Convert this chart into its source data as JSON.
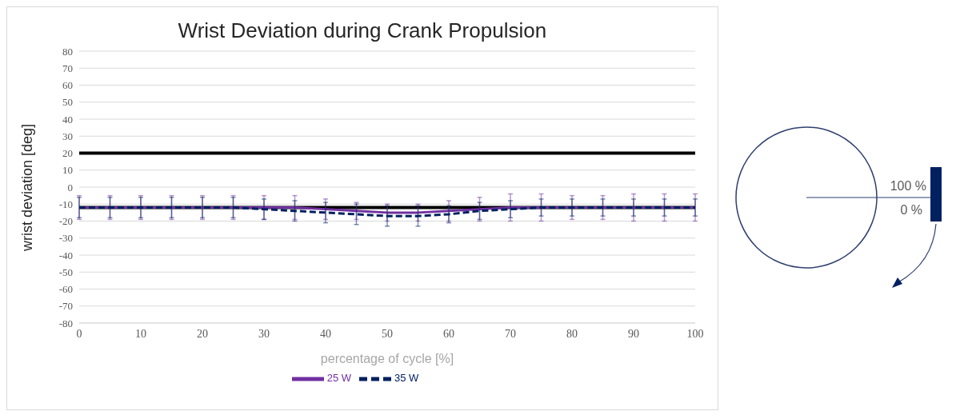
{
  "chart_data": {
    "type": "line",
    "title": "Wrist Deviation during Crank Propulsion",
    "xlabel": "percentage of cycle [%]",
    "ylabel": "wrist deviation [deg]",
    "x": [
      0,
      5,
      10,
      15,
      20,
      25,
      30,
      35,
      40,
      45,
      50,
      55,
      60,
      65,
      70,
      75,
      80,
      85,
      90,
      95,
      100
    ],
    "series": [
      {
        "name": "25 W",
        "color": "#7030a0",
        "line_style": "solid",
        "values": [
          -12,
          -12,
          -12,
          -12,
          -12,
          -12,
          -12,
          -12,
          -13,
          -14,
          -15,
          -15,
          -14,
          -13,
          -12,
          -12,
          -12,
          -12,
          -12,
          -12,
          -12
        ],
        "errors": [
          7,
          7,
          7,
          7,
          7,
          7,
          7,
          7,
          6,
          5,
          5,
          5,
          6,
          7,
          8,
          8,
          7,
          7,
          8,
          8,
          8
        ]
      },
      {
        "name": "35 W",
        "color": "#002060",
        "line_style": "dashed",
        "values": [
          -12,
          -12,
          -12,
          -12,
          -12,
          -12,
          -13,
          -14,
          -15,
          -16,
          -17,
          -17,
          -16,
          -14,
          -13,
          -12,
          -12,
          -12,
          -12,
          -12,
          -12
        ],
        "errors": [
          6,
          6,
          6,
          6,
          6,
          6,
          6,
          6,
          6,
          6,
          6,
          6,
          5,
          5,
          5,
          5,
          5,
          5,
          5,
          5,
          5
        ]
      }
    ],
    "xlim": [
      0,
      100
    ],
    "xticks": [
      0,
      10,
      20,
      30,
      40,
      50,
      60,
      70,
      80,
      90,
      100
    ],
    "ylim": [
      -80,
      80
    ],
    "yticks": [
      -80,
      -70,
      -60,
      -50,
      -40,
      -30,
      -20,
      -10,
      0,
      10,
      20,
      30,
      40,
      50,
      60,
      70,
      80
    ],
    "ref_lines": [
      {
        "axis": "y",
        "value": 20,
        "color": "#000000"
      },
      {
        "axis": "y",
        "value": -12,
        "color": "#000000"
      }
    ],
    "grid": "y",
    "legend": "bottom",
    "marker": "none",
    "annotations": [
      "100 %",
      "0 %"
    ]
  }
}
